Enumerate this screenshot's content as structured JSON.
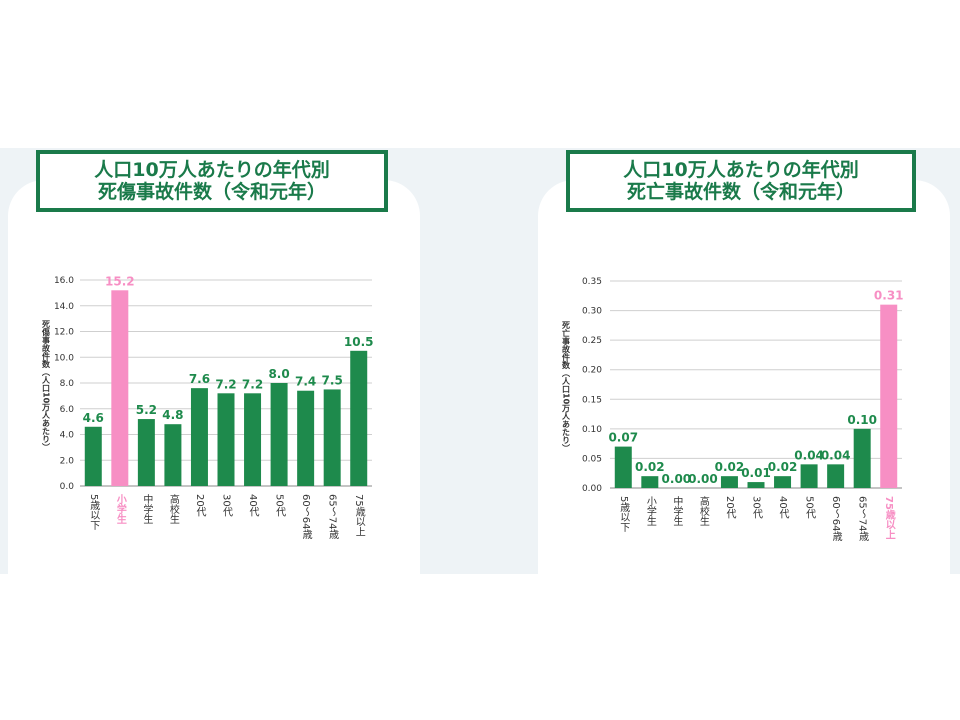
{
  "colors": {
    "green": "#1e8a4c",
    "pink": "#f78fc4",
    "title_green": "#1a7a4a"
  },
  "chart_data": [
    {
      "type": "bar",
      "title_line1": "人口10万人あたりの年代別",
      "title_line2": "死傷事故件数（令和元年）",
      "ylabel": "死傷事故件数（人口10万人あたり）",
      "categories": [
        "5歳以下",
        "小学生",
        "中学生",
        "高校生",
        "20代",
        "30代",
        "40代",
        "50代",
        "60〜64歳",
        "65〜74歳",
        "75歳以上"
      ],
      "values": [
        4.6,
        15.2,
        5.2,
        4.8,
        7.6,
        7.2,
        7.2,
        8.0,
        7.4,
        7.5,
        10.5
      ],
      "value_labels": [
        "4.6",
        "15.2",
        "5.2",
        "4.8",
        "7.6",
        "7.2",
        "7.2",
        "8.0",
        "7.4",
        "7.5",
        "10.5"
      ],
      "highlight_index": 1,
      "ylim": [
        0,
        16
      ],
      "yticks": [
        "0.0",
        "2.0",
        "4.0",
        "6.0",
        "8.0",
        "10.0",
        "12.0",
        "14.0",
        "16.0"
      ],
      "ytick_values": [
        0,
        2,
        4,
        6,
        8,
        10,
        12,
        14,
        16
      ],
      "grid": true
    },
    {
      "type": "bar",
      "title_line1": "人口10万人あたりの年代別",
      "title_line2": "死亡事故件数（令和元年）",
      "ylabel": "死亡事故件数（人口10万人あたり）",
      "categories": [
        "5歳以下",
        "小学生",
        "中学生",
        "高校生",
        "20代",
        "30代",
        "40代",
        "50代",
        "60〜64歳",
        "65〜74歳",
        "75歳以上"
      ],
      "values": [
        0.07,
        0.02,
        0.0,
        0.0,
        0.02,
        0.01,
        0.02,
        0.04,
        0.04,
        0.1,
        0.31
      ],
      "value_labels": [
        "0.07",
        "0.02",
        "0.00",
        "0.00",
        "0.02",
        "0.01",
        "0.02",
        "0.04",
        "0.04",
        "0.10",
        "0.31"
      ],
      "highlight_index": 10,
      "ylim": [
        0,
        0.35
      ],
      "yticks": [
        "0.00",
        "0.05",
        "0.10",
        "0.15",
        "0.20",
        "0.25",
        "0.30",
        "0.35"
      ],
      "ytick_values": [
        0,
        0.05,
        0.1,
        0.15,
        0.2,
        0.25,
        0.3,
        0.35
      ],
      "grid": true
    }
  ]
}
